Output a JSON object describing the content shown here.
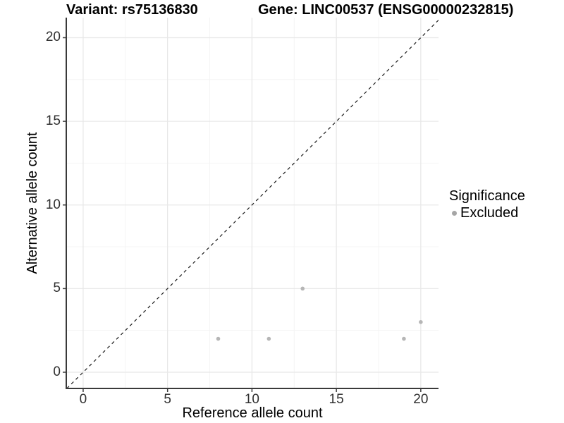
{
  "titles": {
    "left": "Variant: rs75136830",
    "right": "Gene: LINC00537 (ENSG00000232815)"
  },
  "chart_data": {
    "type": "scatter",
    "title_left": "Variant: rs75136830",
    "title_right": "Gene: LINC00537 (ENSG00000232815)",
    "xlabel": "Reference allele count",
    "ylabel": "Alternative allele count",
    "xlim": [
      -1.0,
      21.05
    ],
    "ylim": [
      -0.97,
      21.2
    ],
    "x_ticks": [
      0,
      5,
      10,
      15,
      20
    ],
    "y_ticks": [
      0,
      5,
      10,
      15,
      20
    ],
    "x_minor_gridlines": [
      2.5,
      7.5,
      12.5,
      17.5
    ],
    "y_minor_gridlines": [
      2.5,
      7.5,
      12.5,
      17.5
    ],
    "grid": "major and minor, light gray on white",
    "legend_position": "right",
    "legend_title": "Significance",
    "series": [
      {
        "name": "Excluded",
        "color": "#b6b6b6",
        "legend_dot_color": "#a6a6a6",
        "points": [
          [
            8,
            2
          ],
          [
            11,
            2
          ],
          [
            13,
            5
          ],
          [
            19,
            2
          ],
          [
            20,
            3
          ]
        ]
      }
    ],
    "reference_line": {
      "kind": "identity y=x",
      "style": "dashed",
      "color": "#1a1a1a"
    }
  },
  "theme": {
    "background": "#ffffff",
    "axis_line_color": "#3a3a3a",
    "major_grid_color": "#e8e8e8",
    "minor_grid_color": "#f4f4f4",
    "tick_label_color": "#303030",
    "text_color": "#000000"
  }
}
